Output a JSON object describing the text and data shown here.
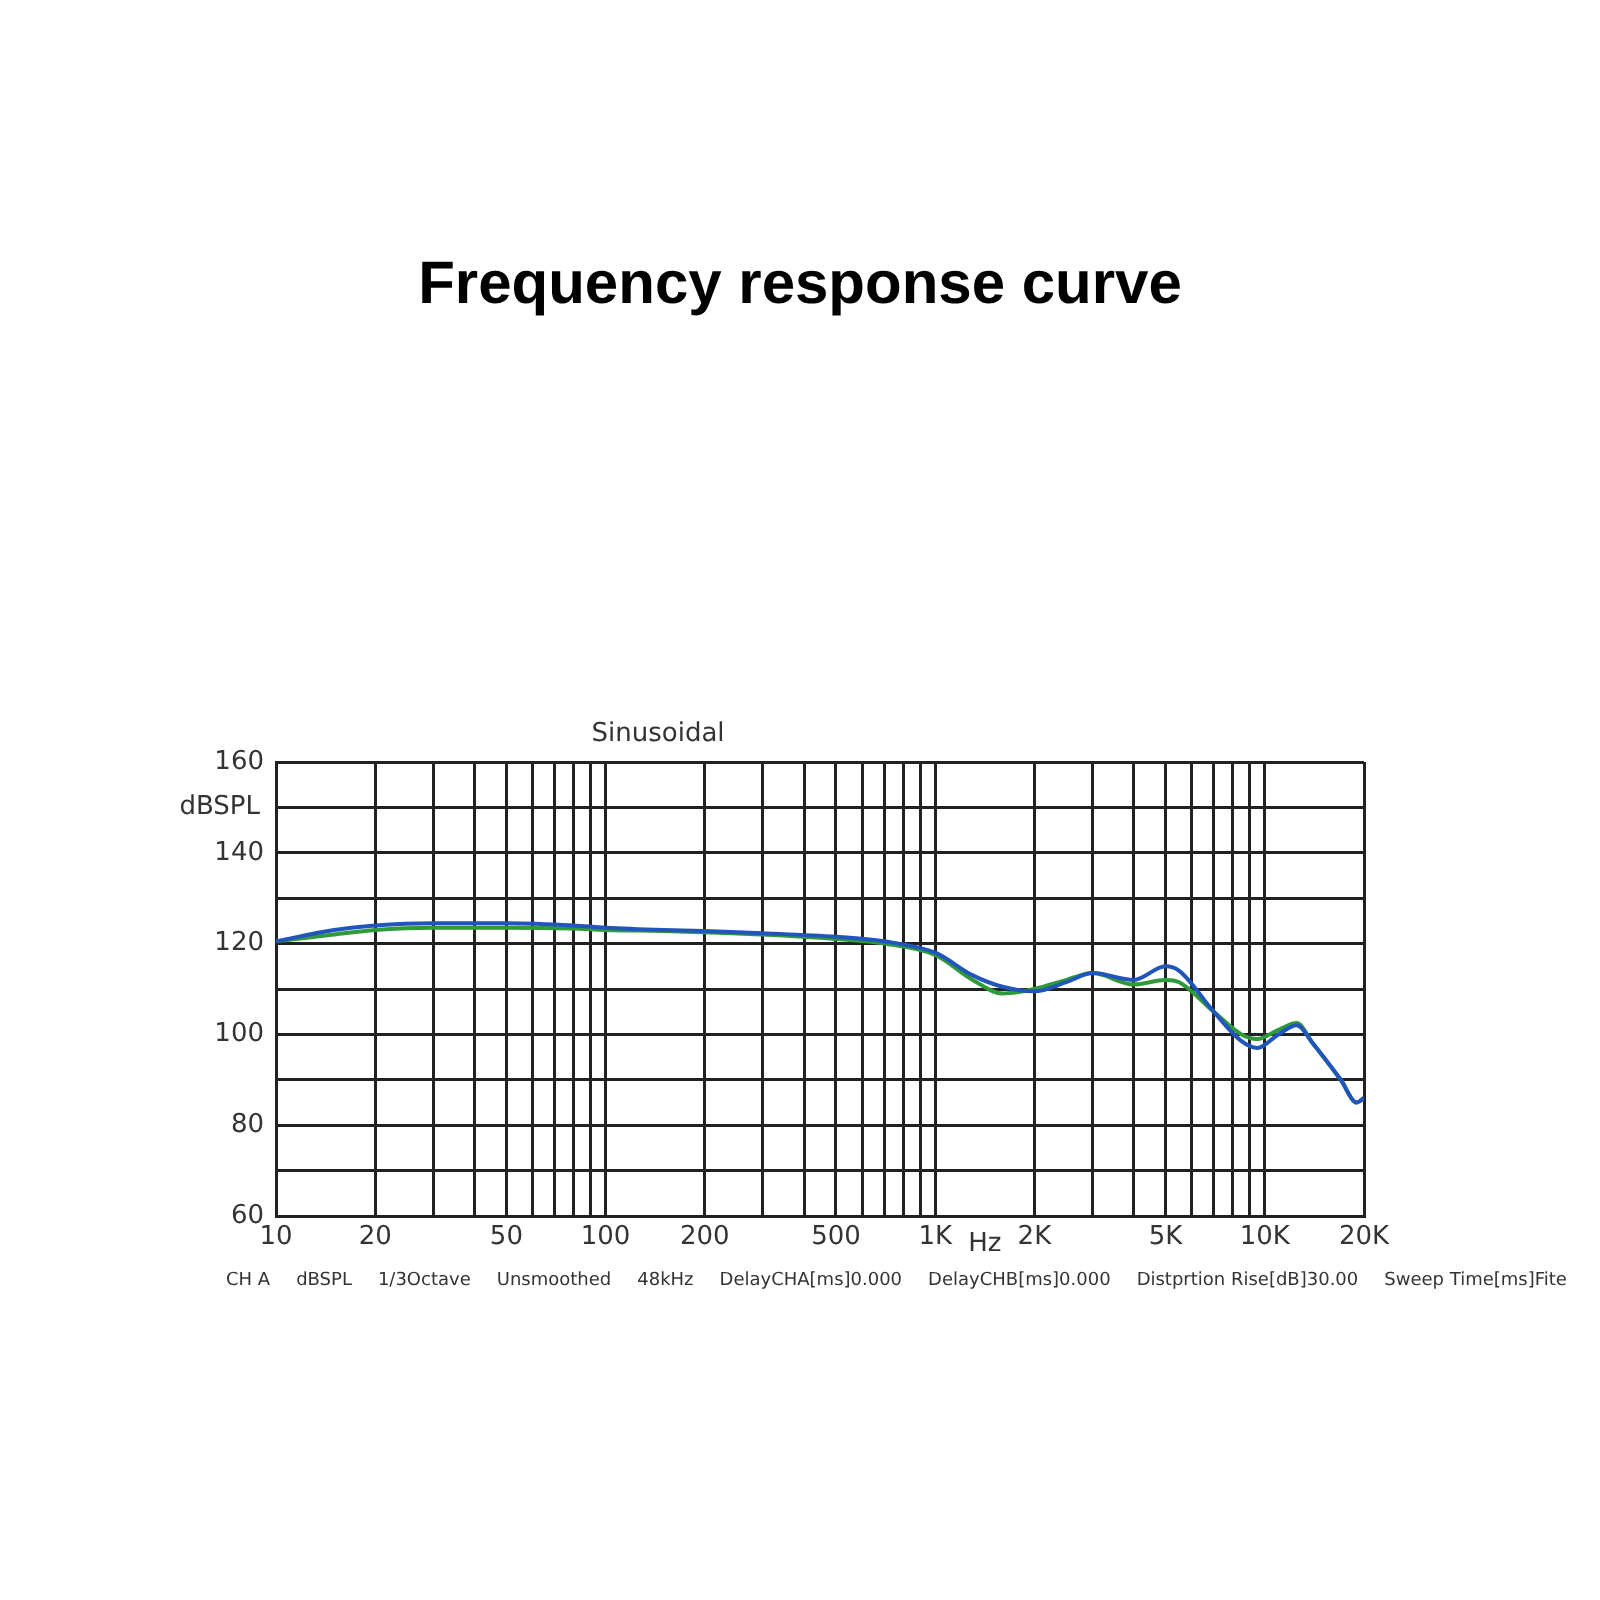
{
  "chart_data": {
    "type": "line",
    "title": "Frequency response curve",
    "xlabel": "Hz",
    "ylabel": "dBSPL",
    "x": [
      10,
      15,
      20,
      30,
      50,
      80,
      100,
      150,
      200,
      300,
      500,
      700,
      1000,
      1300,
      1600,
      2000,
      2500,
      3000,
      4000,
      5000,
      5500,
      7000,
      8500,
      9500,
      11000,
      12500,
      14000,
      17000,
      19000,
      20000
    ],
    "series": [
      {
        "color": "#2255bb",
        "values": [
          120.5,
          123,
          124,
          124.5,
          124.5,
          124,
          123.5,
          123,
          122.8,
          122.3,
          121.5,
          120.5,
          118,
          113,
          110.5,
          109.5,
          111.5,
          113.5,
          112,
          115,
          114,
          105,
          98.5,
          97,
          100,
          102,
          98,
          90,
          85,
          86
        ]
      },
      {
        "color": "#2e9a3a",
        "values": [
          120.5,
          122,
          123,
          123.5,
          123.5,
          123.3,
          123,
          122.8,
          122.5,
          122,
          121,
          120,
          117.5,
          112,
          109,
          110,
          112,
          113.5,
          111,
          112,
          111.5,
          105,
          100,
          99,
          101,
          102.5,
          98,
          90,
          85,
          86
        ]
      }
    ],
    "log": "x",
    "xlim": [
      10,
      20000
    ],
    "xticks": [
      10,
      20,
      {
        "value": 30,
        "label": null
      },
      {
        "value": 40,
        "label": null
      },
      50,
      {
        "value": 60,
        "label": null
      },
      {
        "value": 70,
        "label": null
      },
      {
        "value": 80,
        "label": null
      },
      {
        "value": 90,
        "label": null
      },
      100,
      200,
      {
        "value": 300,
        "label": null
      },
      {
        "value": 400,
        "label": null
      },
      500,
      {
        "value": 600,
        "label": null
      },
      {
        "value": 700,
        "label": null
      },
      {
        "value": 800,
        "label": null
      },
      {
        "value": 900,
        "label": null
      },
      {
        "value": 1000,
        "label": "1K"
      },
      {
        "value": 2000,
        "label": "2K"
      },
      {
        "value": 3000,
        "label": null
      },
      {
        "value": 4000,
        "label": null
      },
      {
        "value": 5000,
        "label": "5K"
      },
      {
        "value": 6000,
        "label": null
      },
      {
        "value": 7000,
        "label": null
      },
      {
        "value": 8000,
        "label": null
      },
      {
        "value": 9000,
        "label": null
      },
      {
        "value": 10000,
        "label": "10K"
      },
      {
        "value": 20000,
        "label": "20K"
      }
    ],
    "ylim": [
      60,
      160
    ],
    "yticks": [
      60,
      {
        "value": 70,
        "label": null
      },
      80,
      {
        "value": 90,
        "label": null
      },
      100,
      {
        "value": 110,
        "label": null
      },
      120,
      {
        "value": 130,
        "label": null
      },
      140,
      {
        "value": 150,
        "label": null
      },
      160
    ],
    "grid": true,
    "legend": false,
    "marker": "none",
    "line_style": "solid",
    "annotations": [
      "Sinusoidal",
      "CH A",
      "dBSPL",
      "1/3Octave",
      "Unsmoothed",
      "48kHz",
      "DelayCHA[ms]0.000",
      "DelayCHB[ms]0.000",
      "Distprtion Rise[dB]30.00",
      "Sweep Time[ms]Fite"
    ]
  }
}
